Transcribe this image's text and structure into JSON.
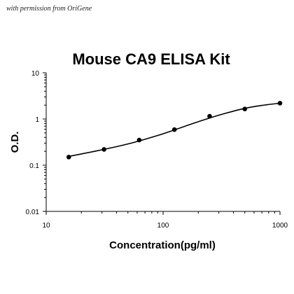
{
  "watermark": "with permission from OriGene",
  "chart_data": {
    "type": "scatter",
    "title": "Mouse CA9 ELISA Kit",
    "xlabel": "Concentration(pg/ml)",
    "ylabel": "O.D.",
    "x_scale": "log",
    "y_scale": "log",
    "xlim": [
      10,
      1000
    ],
    "ylim": [
      0.01,
      10
    ],
    "x_ticks": [
      "10",
      "100",
      "1000"
    ],
    "y_ticks": [
      "0.01",
      "0.1",
      "1",
      "10"
    ],
    "grid": false,
    "series": [
      {
        "x": [
          15.6,
          31.25,
          62.5,
          125,
          250,
          500,
          1000
        ],
        "y": [
          0.15,
          0.22,
          0.35,
          0.59,
          1.15,
          1.65,
          2.2
        ]
      }
    ],
    "curve": {
      "type": "fitted",
      "x": [
        15.6,
        20,
        31.25,
        45,
        62.5,
        90,
        125,
        180,
        250,
        350,
        500,
        700,
        1000
      ],
      "y": [
        0.155,
        0.175,
        0.22,
        0.27,
        0.335,
        0.44,
        0.58,
        0.8,
        1.05,
        1.35,
        1.7,
        1.97,
        2.2
      ]
    },
    "colors": {
      "marker": "#000000",
      "line": "#000000",
      "axis": "#000000"
    }
  }
}
